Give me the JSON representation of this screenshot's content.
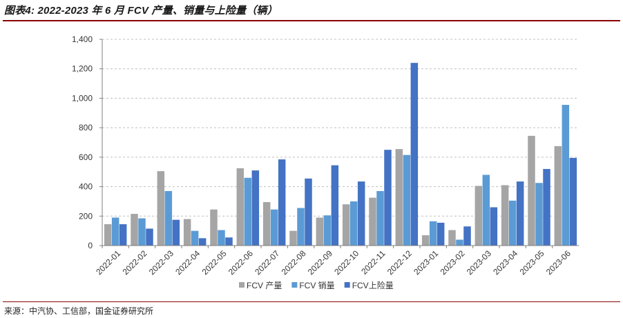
{
  "header": {
    "title": "图表4: 2022-2023 年 6 月 FCV 产量、销量与上险量（辆）"
  },
  "footer": {
    "source": "来源：中汽协、工信部，国金证券研究所"
  },
  "colors": {
    "production": "#a5a5a5",
    "sales": "#5b9bd5",
    "insurance": "#4472c4",
    "rule": "#8b0000"
  },
  "chart_data": {
    "type": "bar",
    "title": "图表4: 2022-2023 年 6 月 FCV 产量、销量与上险量（辆）",
    "xlabel": "",
    "ylabel": "",
    "ylim": [
      0,
      1400
    ],
    "yticks": [
      "0",
      "200",
      "400",
      "600",
      "800",
      "1,000",
      "1,200",
      "1,400"
    ],
    "grid": true,
    "legend_position": "bottom",
    "categories": [
      "2022-01",
      "2022-02",
      "2022-03",
      "2022-04",
      "2022-05",
      "2022-06",
      "2022-07",
      "2022-08",
      "2022-09",
      "2022-10",
      "2022-11",
      "2022-12",
      "2023-01",
      "2023-02",
      "2023-03",
      "2023-04",
      "2023-05",
      "2023-06"
    ],
    "series": [
      {
        "name": "FCV 产量",
        "color": "#a5a5a5",
        "values": [
          145,
          215,
          505,
          180,
          245,
          525,
          295,
          100,
          190,
          280,
          325,
          655,
          70,
          105,
          405,
          410,
          745,
          675
        ]
      },
      {
        "name": "FCV 销量",
        "color": "#5b9bd5",
        "values": [
          190,
          185,
          370,
          100,
          105,
          460,
          245,
          255,
          205,
          300,
          370,
          615,
          165,
          40,
          480,
          305,
          425,
          955
        ]
      },
      {
        "name": "FCV上险量",
        "color": "#4472c4",
        "values": [
          145,
          115,
          175,
          50,
          55,
          510,
          585,
          455,
          545,
          435,
          650,
          1240,
          155,
          130,
          260,
          435,
          520,
          595
        ]
      }
    ]
  }
}
